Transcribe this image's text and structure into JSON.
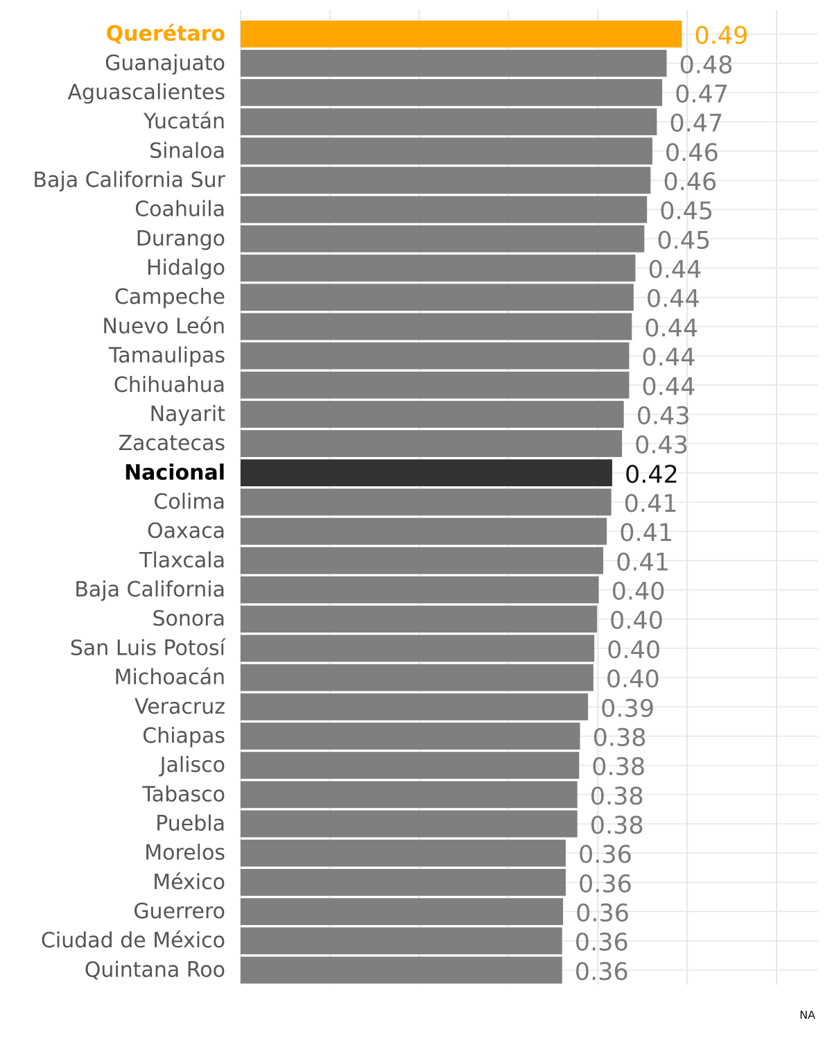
{
  "chart_data": {
    "type": "bar",
    "orientation": "horizontal",
    "title": "",
    "xlabel": "",
    "ylabel": "",
    "xlim": [
      0,
      0.6
    ],
    "grid": true,
    "categories": [
      "Querétaro",
      "Guanajuato",
      "Aguascalientes",
      "Yucatán",
      "Sinaloa",
      "Baja California Sur",
      "Coahuila",
      "Durango",
      "Hidalgo",
      "Campeche",
      "Nuevo León",
      "Tamaulipas",
      "Chihuahua",
      "Nayarit",
      "Zacatecas",
      "Nacional",
      "Colima",
      "Oaxaca",
      "Tlaxcala",
      "Baja California",
      "Sonora",
      "San Luis Potosí",
      "Michoacán",
      "Veracruz",
      "Chiapas",
      "Jalisco",
      "Tabasco",
      "Puebla",
      "Morelos",
      "México",
      "Guerrero",
      "Ciudad de México",
      "Quintana Roo"
    ],
    "values": [
      0.494,
      0.477,
      0.472,
      0.466,
      0.461,
      0.459,
      0.455,
      0.452,
      0.442,
      0.44,
      0.438,
      0.435,
      0.435,
      0.429,
      0.427,
      0.416,
      0.415,
      0.41,
      0.406,
      0.401,
      0.399,
      0.396,
      0.395,
      0.389,
      0.38,
      0.379,
      0.377,
      0.377,
      0.364,
      0.364,
      0.361,
      0.36,
      0.36
    ],
    "labels": [
      "0.49",
      "0.48",
      "0.47",
      "0.47",
      "0.46",
      "0.46",
      "0.45",
      "0.45",
      "0.44",
      "0.44",
      "0.44",
      "0.44",
      "0.44",
      "0.43",
      "0.43",
      "0.42",
      "0.41",
      "0.41",
      "0.41",
      "0.40",
      "0.40",
      "0.40",
      "0.40",
      "0.39",
      "0.38",
      "0.38",
      "0.38",
      "0.38",
      "0.36",
      "0.36",
      "0.36",
      "0.36",
      "0.36"
    ],
    "highlight": {
      "Querétaro": "#FFA500",
      "Nacional": "#333333"
    },
    "colors": {
      "bar_default": "#7F7F7F",
      "bar_highlight": "#FFA500",
      "bar_national": "#333333",
      "label_default": "#7A7A7A",
      "label_highlight": "#FFA500",
      "label_national": "#111111",
      "category_default": "#555555",
      "category_highlight": "#FFA500",
      "category_national": "#000000",
      "grid": "#E6E6E6"
    }
  },
  "footnote": "NA"
}
